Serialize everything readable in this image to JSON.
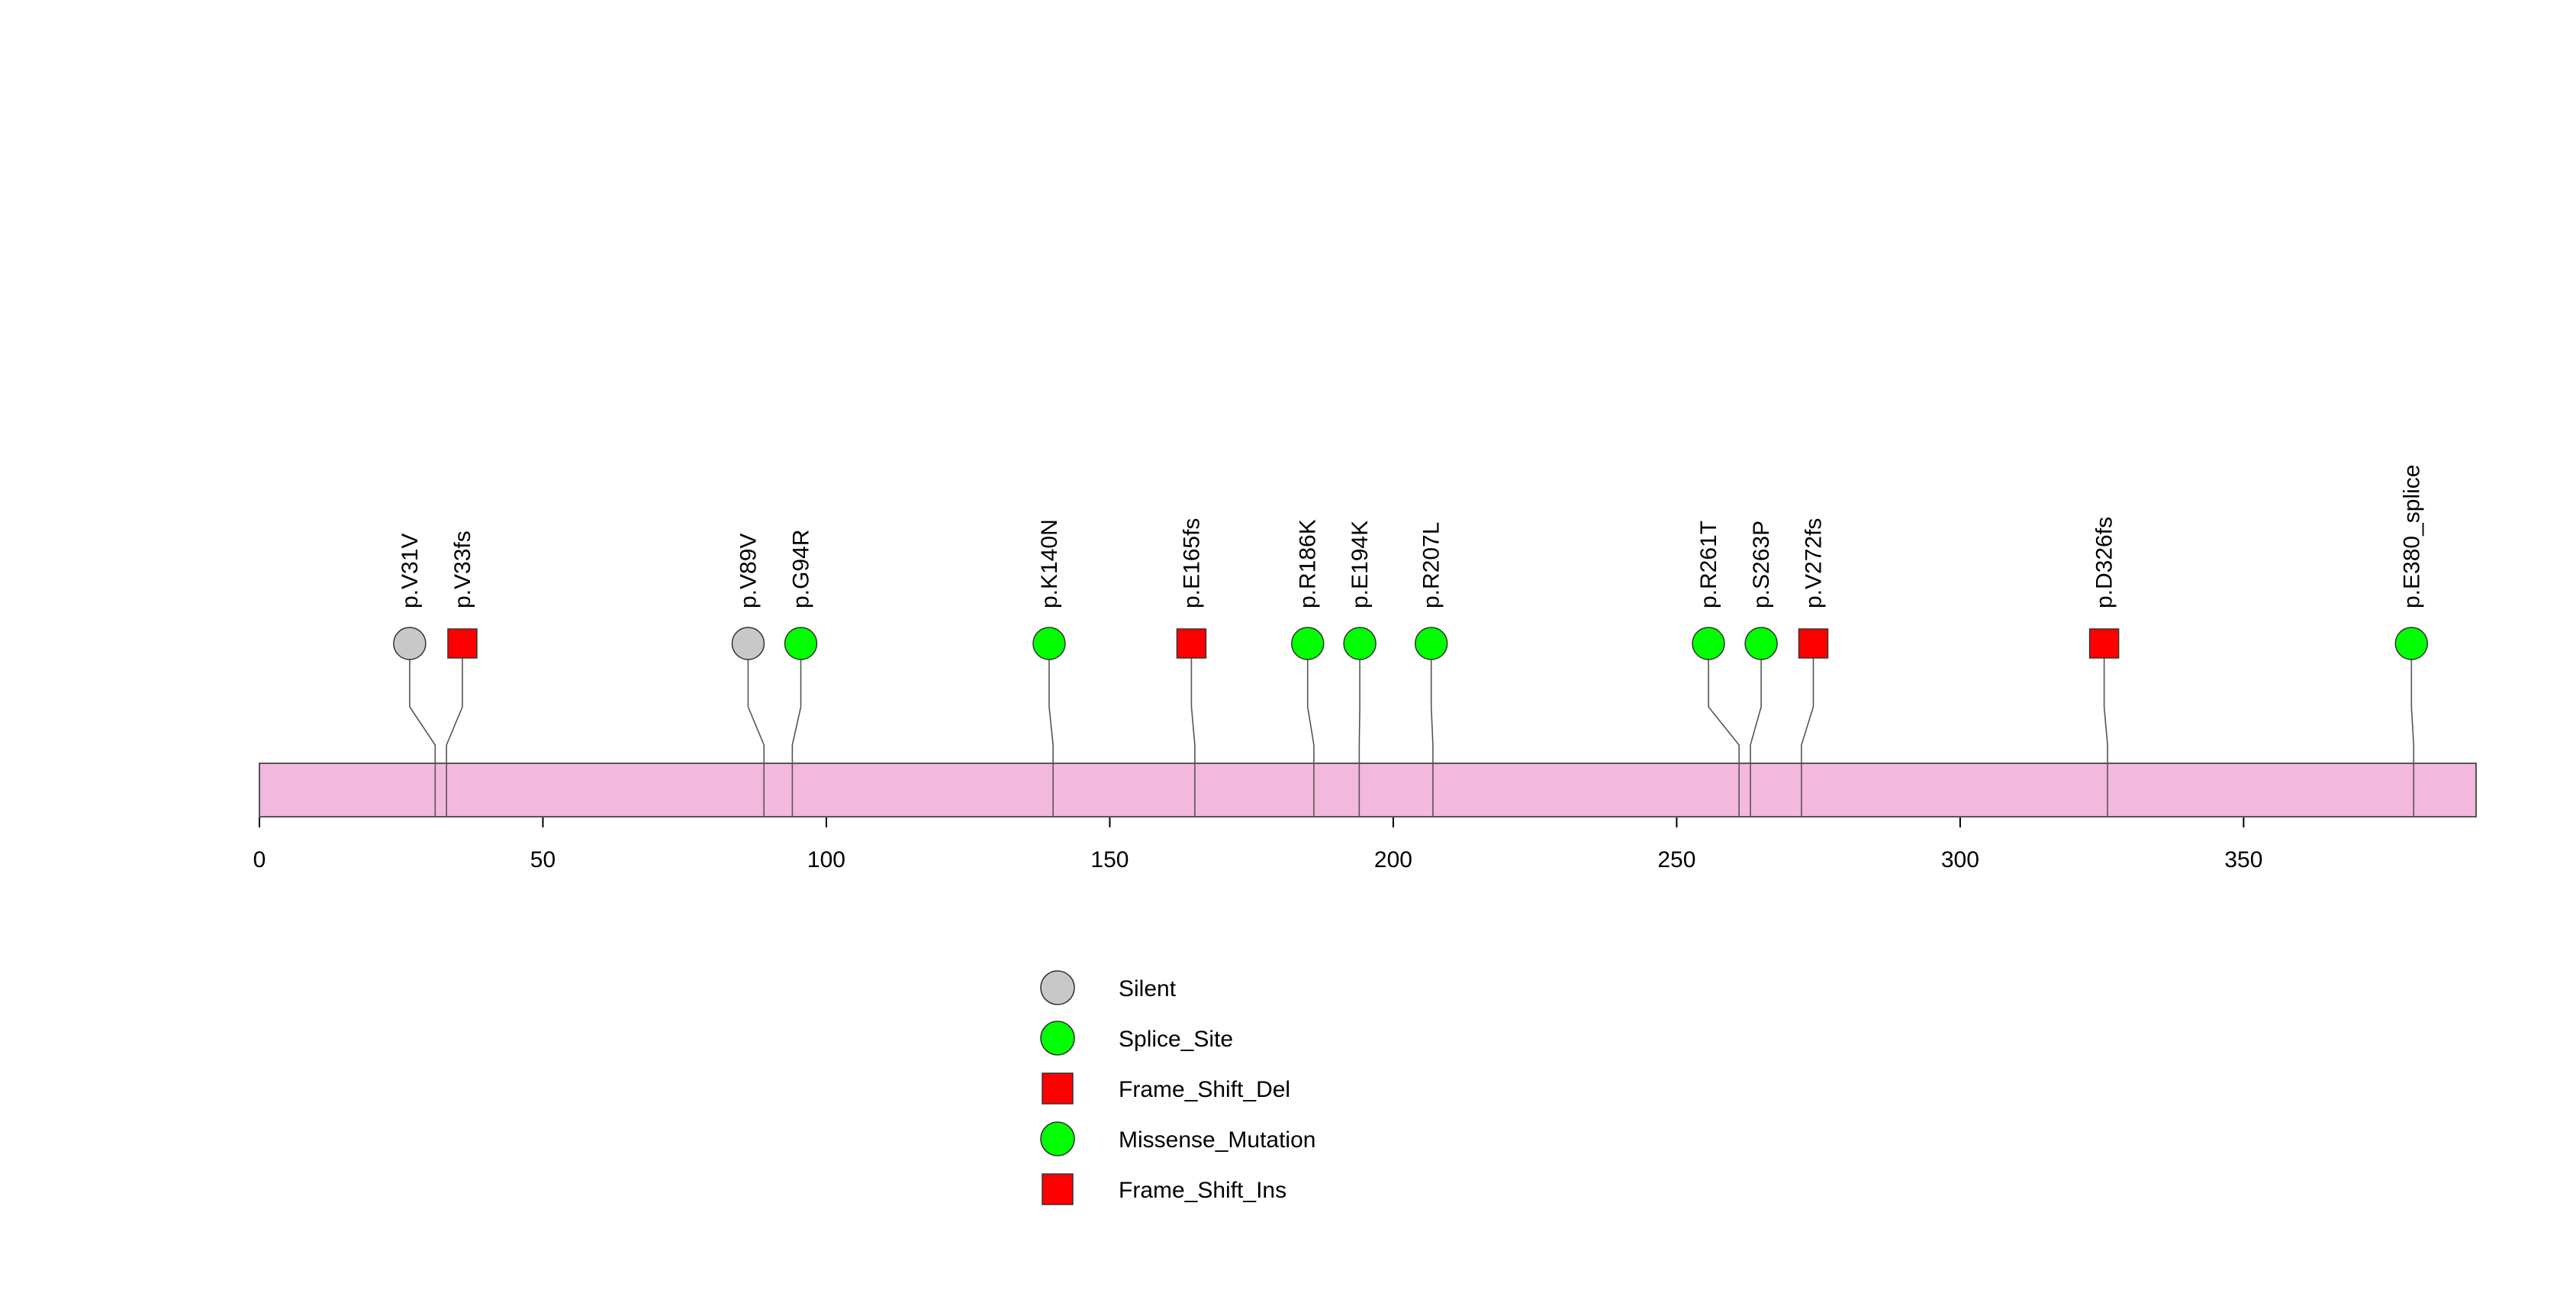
{
  "chart_data": {
    "type": "lollipop",
    "title": "",
    "xlabel": "",
    "ylabel": "",
    "xlim": [
      0,
      391
    ],
    "x_ticks": [
      0,
      50,
      100,
      150,
      200,
      250,
      300,
      350
    ],
    "grid": false,
    "protein_length": 391,
    "mutations": [
      {
        "label": "p.V31V",
        "position": 31,
        "type": "Silent",
        "display_position": 26.5
      },
      {
        "label": "p.V33fs",
        "position": 33,
        "type": "Frame_Shift_Del",
        "display_position": 35.8
      },
      {
        "label": "p.V89V",
        "position": 89,
        "type": "Silent",
        "display_position": 86.2
      },
      {
        "label": "p.G94R",
        "position": 94,
        "type": "Missense_Mutation",
        "display_position": 95.5
      },
      {
        "label": "p.K140N",
        "position": 140,
        "type": "Missense_Mutation",
        "display_position": 139.3
      },
      {
        "label": "p.E165fs",
        "position": 165,
        "type": "Frame_Shift_Del",
        "display_position": 164.4
      },
      {
        "label": "p.R186K",
        "position": 186,
        "type": "Missense_Mutation",
        "display_position": 184.9
      },
      {
        "label": "p.E194K",
        "position": 194,
        "type": "Missense_Mutation",
        "display_position": 194.1
      },
      {
        "label": "p.R207L",
        "position": 207,
        "type": "Missense_Mutation",
        "display_position": 206.7
      },
      {
        "label": "p.R261T",
        "position": 261,
        "type": "Missense_Mutation",
        "display_position": 255.6
      },
      {
        "label": "p.S263P",
        "position": 263,
        "type": "Missense_Mutation",
        "display_position": 264.9
      },
      {
        "label": "p.V272fs",
        "position": 272,
        "type": "Frame_Shift_Del",
        "display_position": 274.1
      },
      {
        "label": "p.D326fs",
        "position": 326,
        "type": "Frame_Shift_Del",
        "display_position": 325.4
      },
      {
        "label": "p.E380_splice",
        "position": 380,
        "type": "Splice_Site",
        "display_position": 379.6
      }
    ],
    "legend": {
      "placement": "bottom-center",
      "entries": [
        {
          "label": "Silent",
          "shape": "circle",
          "color": "#c8c8c8"
        },
        {
          "label": "Splice_Site",
          "shape": "circle",
          "color": "#00ff00"
        },
        {
          "label": "Frame_Shift_Del",
          "shape": "square",
          "color": "#ff0000"
        },
        {
          "label": "Missense_Mutation",
          "shape": "circle",
          "color": "#00ff00"
        },
        {
          "label": "Frame_Shift_Ins",
          "shape": "square",
          "color": "#ff0000"
        }
      ]
    },
    "colors": {
      "protein_bar": "#f2b8dd",
      "outline": "#555555",
      "Silent": "#c8c8c8",
      "Splice_Site": "#00ff00",
      "Missense_Mutation": "#00ff00",
      "Frame_Shift_Del": "#ff0000",
      "Frame_Shift_Ins": "#ff0000"
    }
  }
}
